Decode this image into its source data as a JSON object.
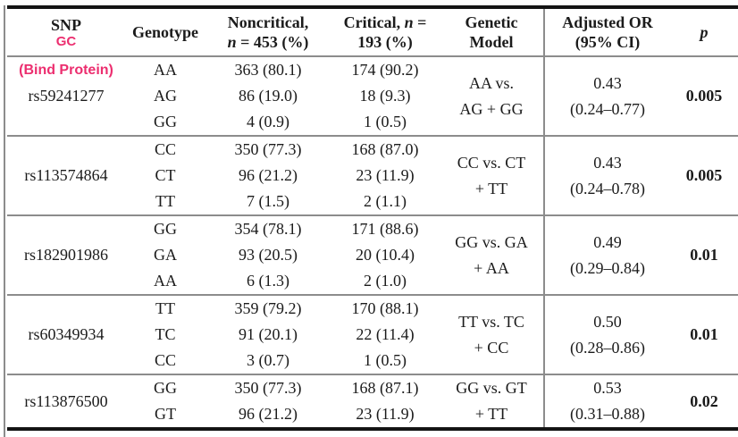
{
  "colors": {
    "accent_pink": "#EC2E6F",
    "rule_gray": "#8C8C8C",
    "border_black": "#141414",
    "text": "#1B1B1B"
  },
  "table": {
    "headers": {
      "snp": "SNP",
      "snp_annotation": "GC",
      "genotype": "Genotype",
      "noncritical": {
        "line1": "Noncritical,",
        "line2_italic": "n",
        "line2_rest": " = 453 (%)"
      },
      "critical": {
        "line1_prefix": "Critical, ",
        "line1_italic": "n",
        "line1_suffix": " =",
        "line2": "193 (%)"
      },
      "model": {
        "line1": "Genetic",
        "line2": "Model"
      },
      "or": {
        "line1": "Adjusted OR",
        "line2": "(95% CI)"
      },
      "p": "p"
    },
    "rows": [
      {
        "snp_annotation": "(Bind Protein)",
        "snp": "rs59241277",
        "genotypes": [
          "AA",
          "AG",
          "GG"
        ],
        "noncritical": [
          "363 (80.1)",
          "86 (19.0)",
          "4 (0.9)"
        ],
        "critical": [
          "174 (90.2)",
          "18 (9.3)",
          "1 (0.5)"
        ],
        "model": [
          "AA vs.",
          "AG + GG"
        ],
        "or": [
          "0.43",
          "(0.24–0.77)"
        ],
        "p": "0.005"
      },
      {
        "snp": "rs113574864",
        "genotypes": [
          "CC",
          "CT",
          "TT"
        ],
        "noncritical": [
          "350 (77.3)",
          "96 (21.2)",
          "7 (1.5)"
        ],
        "critical": [
          "168 (87.0)",
          "23 (11.9)",
          "2 (1.1)"
        ],
        "model": [
          "CC vs. CT",
          "+ TT"
        ],
        "or": [
          "0.43",
          "(0.24–0.78)"
        ],
        "p": "0.005"
      },
      {
        "snp": "rs182901986",
        "genotypes": [
          "GG",
          "GA",
          "AA"
        ],
        "noncritical": [
          "354 (78.1)",
          "93 (20.5)",
          "6 (1.3)"
        ],
        "critical": [
          "171 (88.6)",
          "20 (10.4)",
          "2 (1.0)"
        ],
        "model": [
          "GG vs. GA",
          "+ AA"
        ],
        "or": [
          "0.49",
          "(0.29–0.84)"
        ],
        "p": "0.01"
      },
      {
        "snp": "rs60349934",
        "genotypes": [
          "TT",
          "TC",
          "CC"
        ],
        "noncritical": [
          "359 (79.2)",
          "91 (20.1)",
          "3 (0.7)"
        ],
        "critical": [
          "170 (88.1)",
          "22 (11.4)",
          "1 (0.5)"
        ],
        "model": [
          "TT vs. TC",
          "+ CC"
        ],
        "or": [
          "0.50",
          "(0.28–0.86)"
        ],
        "p": "0.01"
      },
      {
        "snp": "rs113876500",
        "genotypes": [
          "GG",
          "GT"
        ],
        "noncritical": [
          "350 (77.3)",
          "96 (21.2)"
        ],
        "critical": [
          "168 (87.1)",
          "23 (11.9)"
        ],
        "model": [
          "GG vs. GT",
          "+ TT"
        ],
        "or": [
          "0.53",
          "(0.31–0.88)"
        ],
        "p": "0.02"
      }
    ]
  }
}
